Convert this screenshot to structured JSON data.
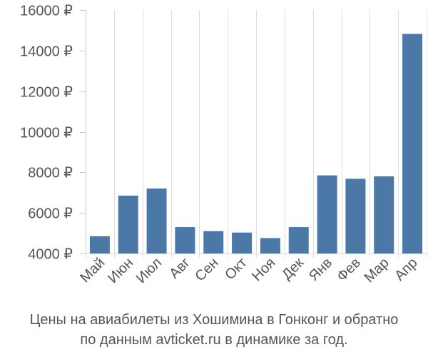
{
  "chart_data": {
    "type": "bar",
    "categories": [
      "Май",
      "Июн",
      "Июл",
      "Авг",
      "Сен",
      "Окт",
      "Ноя",
      "Дек",
      "Янв",
      "Фев",
      "Мар",
      "Апр"
    ],
    "values": [
      4850,
      6850,
      7200,
      5300,
      5100,
      5030,
      4760,
      5300,
      7850,
      7680,
      7800,
      14820
    ],
    "ylim": [
      4000,
      16000
    ],
    "yticks": [
      4000,
      6000,
      8000,
      10000,
      12000,
      14000,
      16000
    ],
    "ytick_labels": [
      "4000 ₽",
      "6000 ₽",
      "8000 ₽",
      "10000 ₽",
      "12000 ₽",
      "14000 ₽",
      "16000 ₽"
    ],
    "grid": "vertical",
    "bar_color": "#4c78a8",
    "title": "Цены на авиабилеты из Хошимина в Гонконг и обратно",
    "subtitle": "по данным avticket.ru в динамике за год."
  }
}
